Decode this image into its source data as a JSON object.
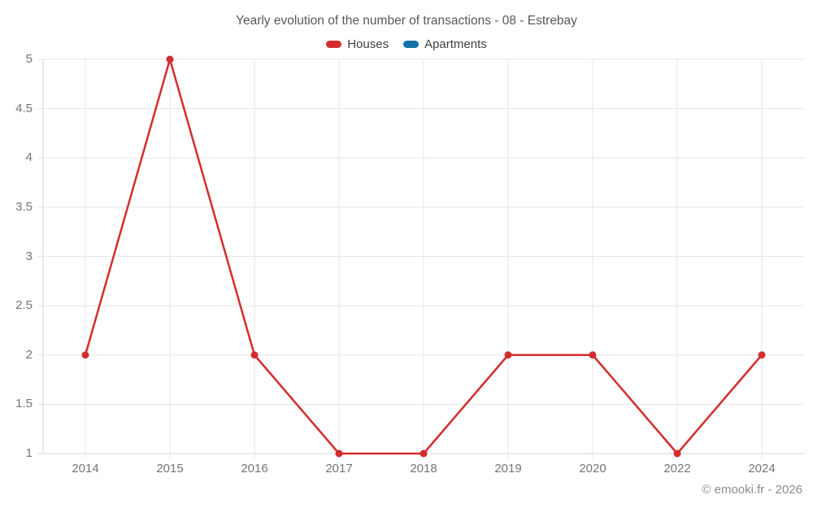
{
  "title": "Yearly evolution of the number of transactions - 08 - Estrebay",
  "footer": "© emooki.fr - 2026",
  "colors": {
    "houses": "#d32d2d",
    "apartments": "#1173a6",
    "gridline": "#e7e7e7",
    "axis_line": "#d6d6d6",
    "tick_label": "#757575",
    "title_text": "#58595b",
    "legend_text": "#3f3f3f",
    "footer_text": "#8c8c8c",
    "background": "#ffffff"
  },
  "chart_data": {
    "type": "line",
    "title": "Yearly evolution of the number of transactions - 08 - Estrebay",
    "categories": [
      "2014",
      "2015",
      "2016",
      "2017",
      "2018",
      "2019",
      "2020",
      "2022",
      "2024"
    ],
    "series": [
      {
        "name": "Houses",
        "color": "#d32d2d",
        "values": [
          2,
          5,
          2,
          1,
          1,
          2,
          2,
          1,
          2
        ]
      },
      {
        "name": "Apartments",
        "color": "#1173a6",
        "values": []
      }
    ],
    "xlabel": "",
    "ylabel": "",
    "ylim": [
      1,
      5
    ],
    "yticks": [
      1,
      1.5,
      2,
      2.5,
      3,
      3.5,
      4,
      4.5,
      5
    ],
    "grid": true,
    "legend_position": "top",
    "marker_radius": 4.5,
    "line_width": 2.5
  }
}
